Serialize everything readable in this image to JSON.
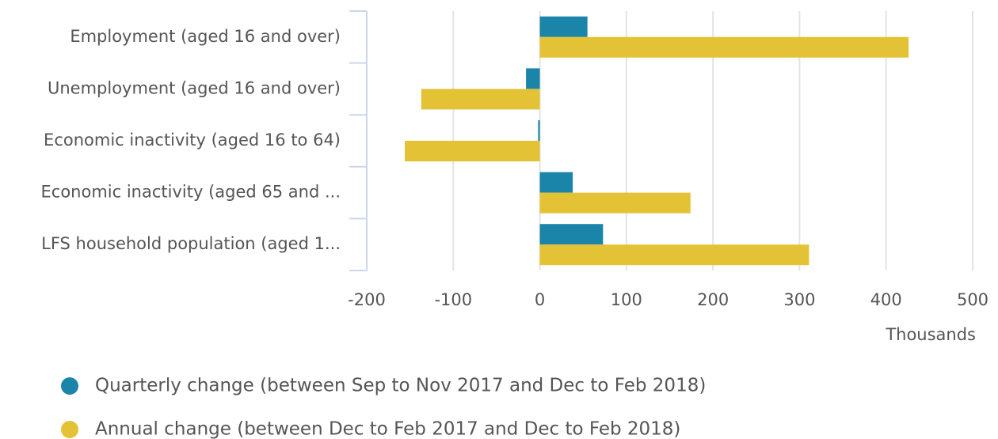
{
  "chart_data": {
    "type": "bar",
    "orientation": "horizontal",
    "categories": [
      "Employment (aged 16 and over)",
      "Unemployment (aged 16 and over)",
      "Economic inactivity (aged 16 to 64)",
      "Economic inactivity (aged 65 and ...",
      "LFS household population (aged 1..."
    ],
    "series": [
      {
        "name": "Quarterly change (between Sep to Nov 2017 and Dec to Feb 2018)",
        "color": "#1b84a9",
        "values": [
          55,
          -16,
          -2,
          38,
          73
        ]
      },
      {
        "name": "Annual change (between Dec to Feb 2017 and Dec to Feb 2018)",
        "color": "#e4c236",
        "values": [
          426,
          -137,
          -156,
          174,
          311
        ]
      }
    ],
    "x_label": "Thousands",
    "xlim": [
      -200,
      500
    ],
    "xticks": [
      -200,
      -100,
      0,
      100,
      200,
      300,
      400,
      500
    ],
    "grid": true,
    "legend": "bottom"
  }
}
